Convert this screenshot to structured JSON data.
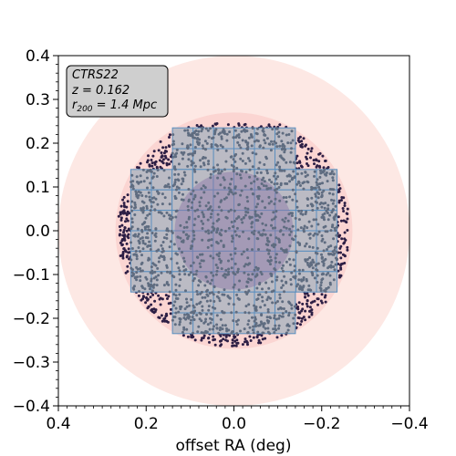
{
  "chart_data": {
    "type": "scatter",
    "xlabel": "offset RA (deg)",
    "ylabel": "",
    "xlim": [
      0.4,
      -0.4
    ],
    "ylim": [
      -0.4,
      0.4
    ],
    "x_ticks": [
      0.4,
      0.2,
      0.0,
      -0.2,
      -0.4
    ],
    "x_tick_labels": [
      "0.4",
      "0.2",
      "0.0",
      "−0.2",
      "−0.4"
    ],
    "y_ticks": [
      0.4,
      0.3,
      0.2,
      0.1,
      0.0,
      -0.1,
      -0.2,
      -0.3,
      -0.4
    ],
    "y_tick_labels": [
      "0.4",
      "0.3",
      "0.2",
      "0.1",
      "0.0",
      "−0.1",
      "−0.2",
      "−0.3",
      "−0.4"
    ],
    "grid": false,
    "info_box": {
      "placement": "top-left",
      "name": "CTRS22",
      "redshift": "z = 0.162",
      "r200_prefix": "r",
      "r200_sub": "200",
      "r200_value": " = 1.4 Mpc"
    },
    "circles": [
      {
        "radius_deg": 0.4,
        "color": "#fde8e4"
      },
      {
        "radius_deg": 0.27,
        "color": "#fbd5d2"
      },
      {
        "radius_deg": 0.135,
        "color": "#8e7aa8"
      }
    ],
    "galaxy_region": {
      "radius_deg": 0.265,
      "y_cut": 0.245,
      "approx_count": 2000,
      "outside_color": "#2d1f45",
      "inside_color": "#5f6c80"
    },
    "tile_grid": {
      "x_edges": [
        0.235,
        0.14,
        -0.14,
        -0.235
      ],
      "tile_size_deg": 0.0467,
      "rows": [
        {
          "y_top": 0.235,
          "y_bottom": 0.14,
          "x_left": 0.14,
          "x_right": -0.14
        },
        {
          "y_top": 0.14,
          "y_bottom": -0.14,
          "x_left": 0.235,
          "x_right": -0.235
        },
        {
          "y_top": -0.14,
          "y_bottom": -0.235,
          "x_left": 0.14,
          "x_right": -0.14
        }
      ],
      "fill": "#b4b8c2",
      "stroke": "#5b8fbf"
    }
  }
}
